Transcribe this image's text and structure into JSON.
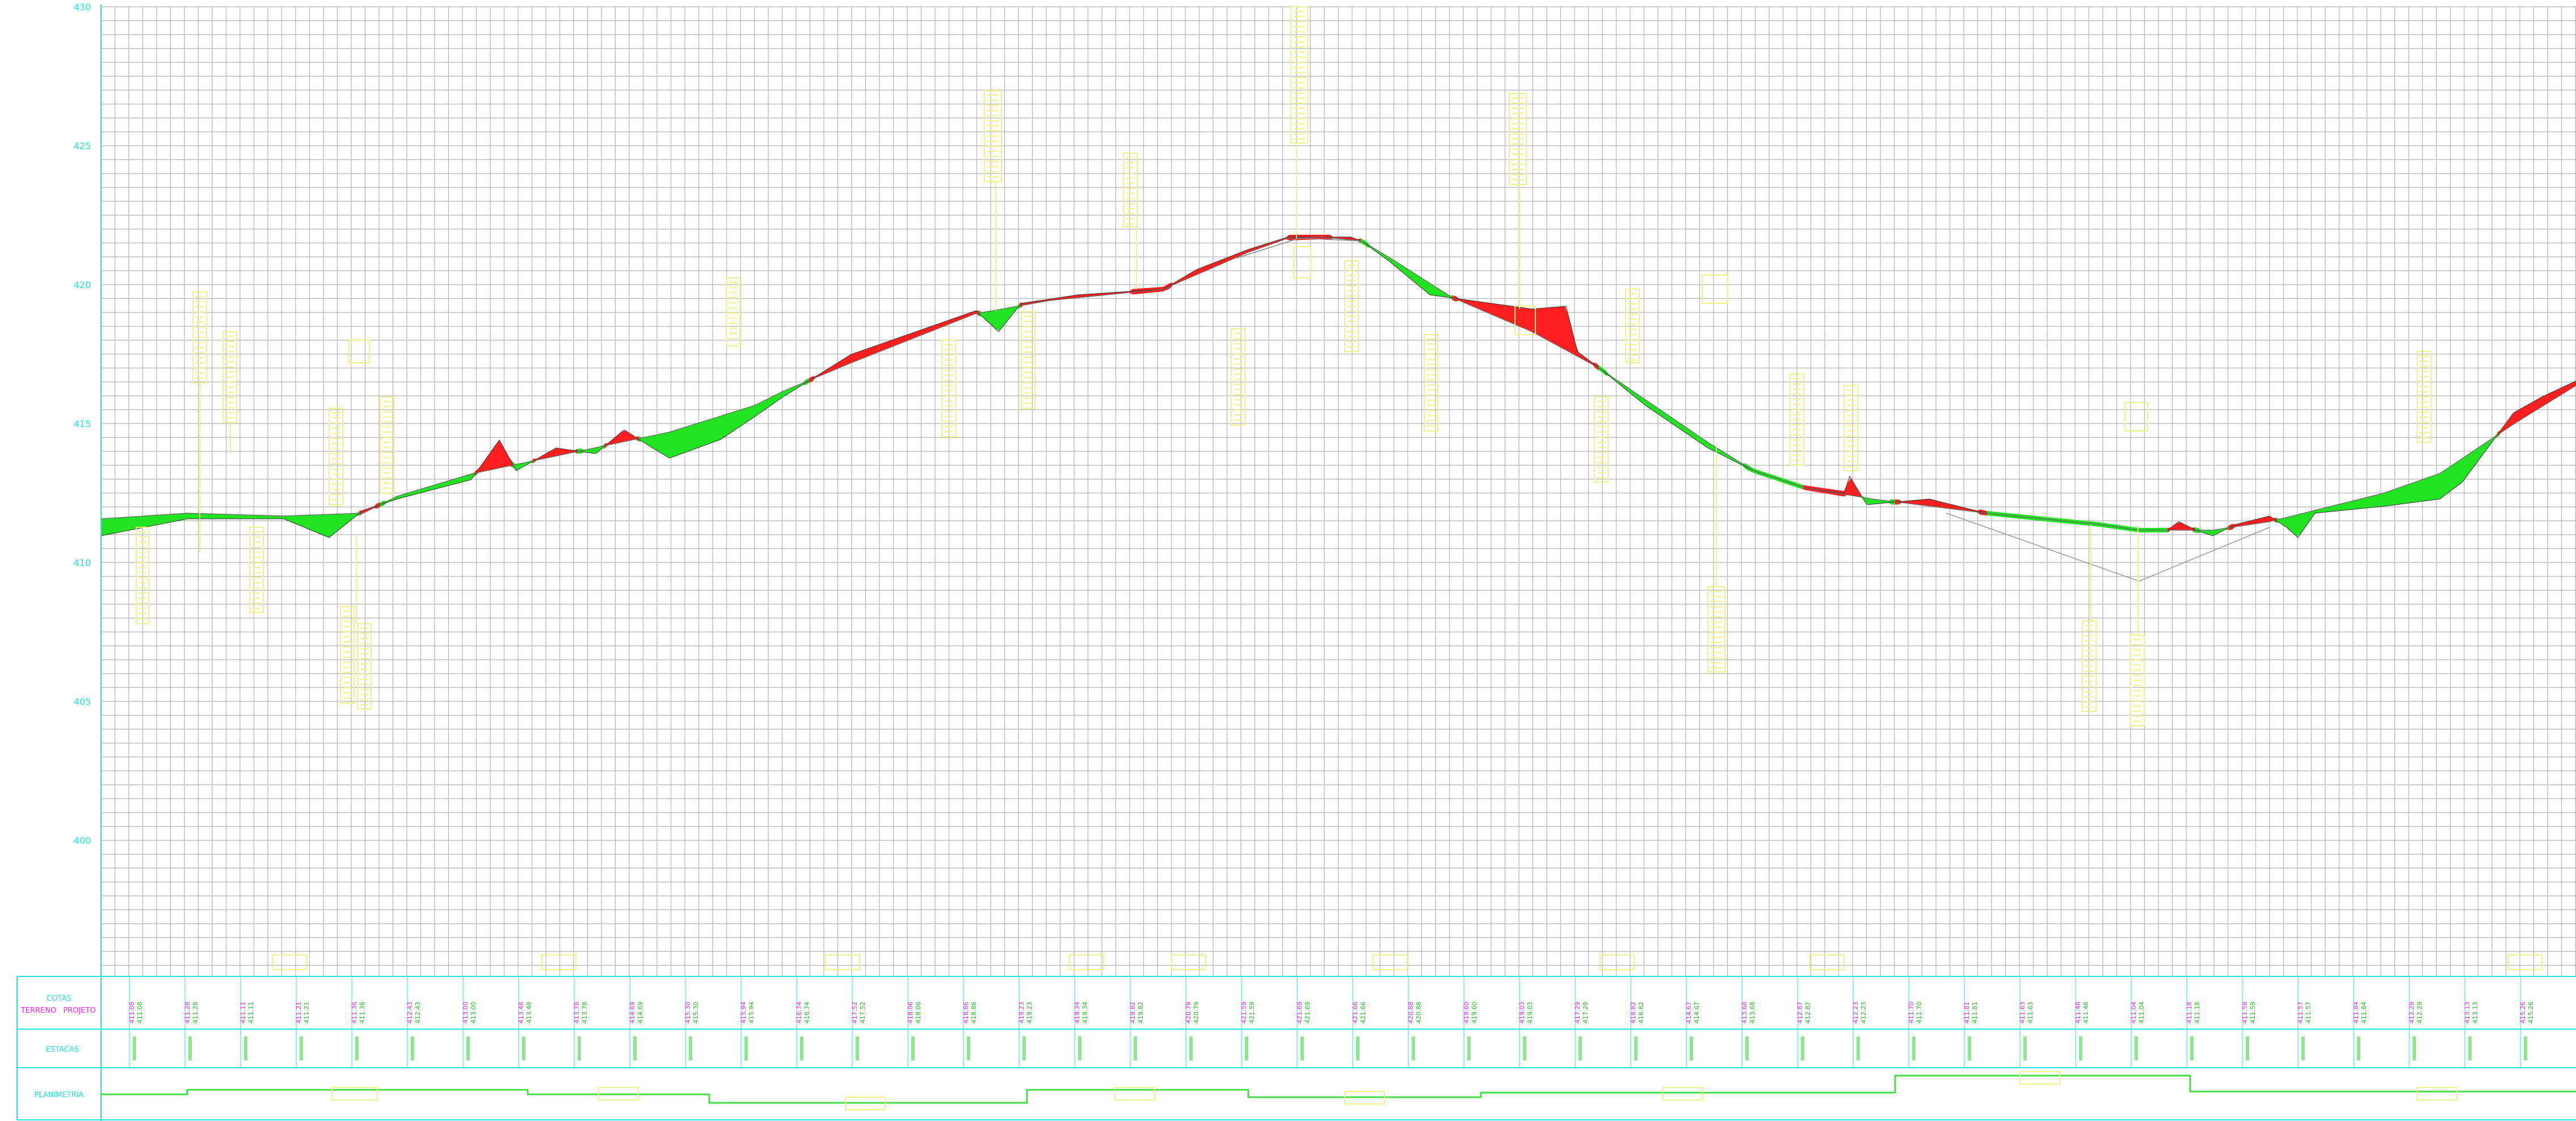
{
  "profile": {
    "elevation_axis": {
      "labels": [
        "430",
        "425",
        "420",
        "415",
        "410",
        "405",
        "400"
      ]
    },
    "band_labels": {
      "cotas": "COTAS",
      "terreno": "TERRENO",
      "projeto": "PROJETO",
      "estacas": "ESTACAS",
      "planimetria": "PLANIMETRIA"
    },
    "colors": {
      "cut": "#ff1f1f",
      "fill": "#22e322",
      "grid": "#b4b4b4",
      "frame": "#22e5e5",
      "annotation": "#f2f28a",
      "terreno_label": "#ff22ff",
      "projeto_label": "#ff22ff"
    },
    "cotas_terreno": [
      "411.08",
      "411.28",
      "411.11",
      "411.21",
      "411.36",
      "412.43",
      "413.00",
      "413.48",
      "413.78",
      "414.69",
      "415.30",
      "415.94",
      "416.74",
      "417.52",
      "418.06",
      "418.86",
      "419.23",
      "419.34",
      "419.82",
      "420.79",
      "421.59",
      "421.69",
      "421.66",
      "420.88",
      "419.60",
      "419.03",
      "417.29",
      "416.82",
      "414.67",
      "413.68",
      "412.87",
      "412.23",
      "411.70",
      "411.81",
      "411.63",
      "411.48",
      "411.04",
      "411.18",
      "411.59",
      "411.57",
      "411.84",
      "412.29",
      "413.13",
      "415.26"
    ]
  }
}
